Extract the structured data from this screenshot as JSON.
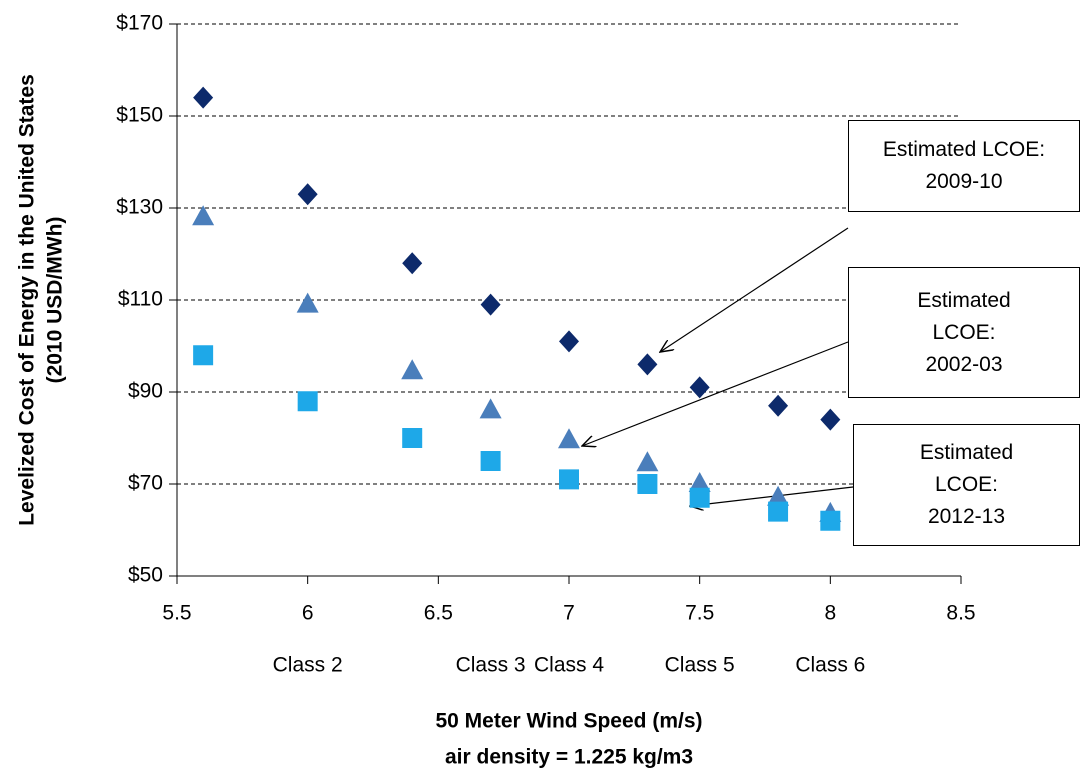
{
  "chart_data": {
    "type": "scatter",
    "x_label": [
      "50 Meter Wind Speed (m/s)",
      "air density = 1.225 kg/m3"
    ],
    "y_label": [
      "Levelized Cost of Energy in the United States",
      "(2010 USD/MWh)"
    ],
    "xlim": [
      5.5,
      8.5
    ],
    "xticks": [
      5.5,
      6,
      6.5,
      7,
      7.5,
      8,
      8.5
    ],
    "ylim": [
      50,
      170
    ],
    "yticks": [
      {
        "value": 50,
        "label": "$50"
      },
      {
        "value": 70,
        "label": "$70"
      },
      {
        "value": 90,
        "label": "$90"
      },
      {
        "value": 110,
        "label": "$110"
      },
      {
        "value": 130,
        "label": "$130"
      },
      {
        "value": 150,
        "label": "$150"
      },
      {
        "value": 170,
        "label": "$170"
      }
    ],
    "grid": true,
    "class_labels": [
      {
        "x": 6,
        "label": "Class 2"
      },
      {
        "x": 6.7,
        "label": "Class 3"
      },
      {
        "x": 7,
        "label": "Class 4"
      },
      {
        "x": 7.5,
        "label": "Class 5"
      },
      {
        "x": 8,
        "label": "Class 6"
      }
    ],
    "series": [
      {
        "name": "Estimated LCOE: 2009-10",
        "marker": "diamond",
        "color": "#0d2a6b",
        "x": [
          5.6,
          6,
          6.4,
          6.7,
          7,
          7.3,
          7.5,
          7.8,
          8
        ],
        "values": [
          154,
          133,
          118,
          109,
          101,
          96,
          91,
          87,
          84
        ]
      },
      {
        "name": "Estimated LCOE: 2002-03",
        "marker": "triangle",
        "color": "#4a7ebb",
        "x": [
          5.6,
          6,
          6.4,
          6.7,
          7,
          7.3,
          7.5,
          7.8,
          8
        ],
        "values": [
          128,
          109,
          94.5,
          86,
          79.5,
          74.5,
          70,
          67,
          63.5
        ]
      },
      {
        "name": "Estimated LCOE: 2012-13",
        "marker": "square",
        "color": "#1ea8e8",
        "x": [
          5.6,
          6,
          6.4,
          6.7,
          7,
          7.3,
          7.5,
          7.8,
          8
        ],
        "values": [
          98,
          88,
          80,
          75,
          71,
          70,
          67,
          64,
          62
        ]
      }
    ]
  }
}
